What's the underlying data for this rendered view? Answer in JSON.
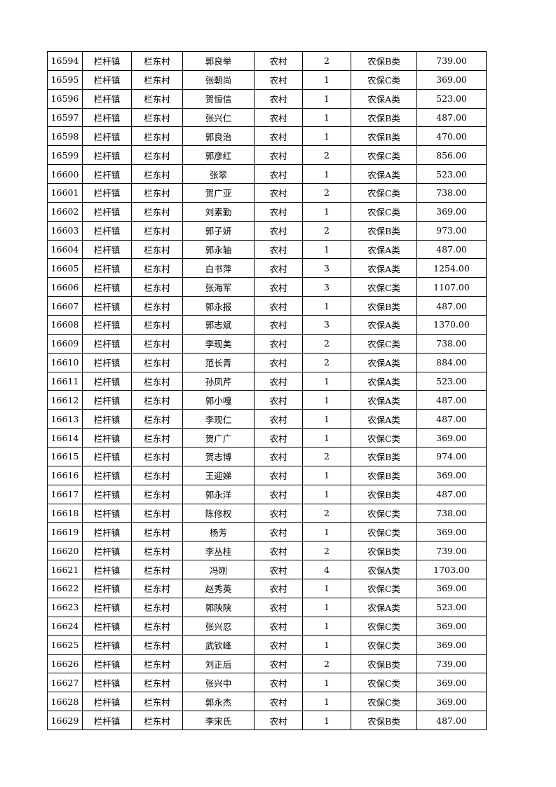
{
  "rows": [
    [
      "16594",
      "栏杆镇",
      "栏东村",
      "郭良举",
      "农村",
      "2",
      "农保B类",
      "739.00"
    ],
    [
      "16595",
      "栏杆镇",
      "栏东村",
      "张朝尚",
      "农村",
      "1",
      "农保C类",
      "369.00"
    ],
    [
      "16596",
      "栏杆镇",
      "栏东村",
      "贺恒信",
      "农村",
      "1",
      "农保A类",
      "523.00"
    ],
    [
      "16597",
      "栏杆镇",
      "栏东村",
      "张兴仁",
      "农村",
      "1",
      "农保B类",
      "487.00"
    ],
    [
      "16598",
      "栏杆镇",
      "栏东村",
      "郭良治",
      "农村",
      "1",
      "农保B类",
      "470.00"
    ],
    [
      "16599",
      "栏杆镇",
      "栏东村",
      "郭彦红",
      "农村",
      "2",
      "农保C类",
      "856.00"
    ],
    [
      "16600",
      "栏杆镇",
      "栏东村",
      "张翠",
      "农村",
      "1",
      "农保A类",
      "523.00"
    ],
    [
      "16601",
      "栏杆镇",
      "栏东村",
      "贺广亚",
      "农村",
      "2",
      "农保C类",
      "738.00"
    ],
    [
      "16602",
      "栏杆镇",
      "栏东村",
      "刘素勤",
      "农村",
      "1",
      "农保C类",
      "369.00"
    ],
    [
      "16603",
      "栏杆镇",
      "栏东村",
      "郭子妍",
      "农村",
      "2",
      "农保B类",
      "973.00"
    ],
    [
      "16604",
      "栏杆镇",
      "栏东村",
      "郭永轴",
      "农村",
      "1",
      "农保A类",
      "487.00"
    ],
    [
      "16605",
      "栏杆镇",
      "栏东村",
      "白书萍",
      "农村",
      "3",
      "农保A类",
      "1254.00"
    ],
    [
      "16606",
      "栏杆镇",
      "栏东村",
      "张海军",
      "农村",
      "3",
      "农保C类",
      "1107.00"
    ],
    [
      "16607",
      "栏杆镇",
      "栏东村",
      "郭永报",
      "农村",
      "1",
      "农保B类",
      "487.00"
    ],
    [
      "16608",
      "栏杆镇",
      "栏东村",
      "郭志斌",
      "农村",
      "3",
      "农保A类",
      "1370.00"
    ],
    [
      "16609",
      "栏杆镇",
      "栏东村",
      "李现美",
      "农村",
      "2",
      "农保C类",
      "738.00"
    ],
    [
      "16610",
      "栏杆镇",
      "栏东村",
      "范长青",
      "农村",
      "2",
      "农保A类",
      "884.00"
    ],
    [
      "16611",
      "栏杆镇",
      "栏东村",
      "孙凤芹",
      "农村",
      "1",
      "农保A类",
      "523.00"
    ],
    [
      "16612",
      "栏杆镇",
      "栏东村",
      "郭小嘎",
      "农村",
      "1",
      "农保A类",
      "487.00"
    ],
    [
      "16613",
      "栏杆镇",
      "栏东村",
      "李现仁",
      "农村",
      "1",
      "农保A类",
      "487.00"
    ],
    [
      "16614",
      "栏杆镇",
      "栏东村",
      "贺广广",
      "农村",
      "1",
      "农保C类",
      "369.00"
    ],
    [
      "16615",
      "栏杆镇",
      "栏东村",
      "贺志博",
      "农村",
      "2",
      "农保B类",
      "974.00"
    ],
    [
      "16616",
      "栏杆镇",
      "栏东村",
      "王迎娣",
      "农村",
      "1",
      "农保B类",
      "369.00"
    ],
    [
      "16617",
      "栏杆镇",
      "栏东村",
      "郭永洋",
      "农村",
      "1",
      "农保B类",
      "487.00"
    ],
    [
      "16618",
      "栏杆镇",
      "栏东村",
      "陈修权",
      "农村",
      "2",
      "农保C类",
      "738.00"
    ],
    [
      "16619",
      "栏杆镇",
      "栏东村",
      "杨芳",
      "农村",
      "1",
      "农保C类",
      "369.00"
    ],
    [
      "16620",
      "栏杆镇",
      "栏东村",
      "李丛桂",
      "农村",
      "2",
      "农保B类",
      "739.00"
    ],
    [
      "16621",
      "栏杆镇",
      "栏东村",
      "冯刚",
      "农村",
      "4",
      "农保A类",
      "1703.00"
    ],
    [
      "16622",
      "栏杆镇",
      "栏东村",
      "赵秀英",
      "农村",
      "1",
      "农保C类",
      "369.00"
    ],
    [
      "16623",
      "栏杆镇",
      "栏东村",
      "郭陕陕",
      "农村",
      "1",
      "农保A类",
      "523.00"
    ],
    [
      "16624",
      "栏杆镇",
      "栏东村",
      "张兴忍",
      "农村",
      "1",
      "农保C类",
      "369.00"
    ],
    [
      "16625",
      "栏杆镇",
      "栏东村",
      "武钦峰",
      "农村",
      "1",
      "农保C类",
      "369.00"
    ],
    [
      "16626",
      "栏杆镇",
      "栏东村",
      "刘正后",
      "农村",
      "2",
      "农保B类",
      "739.00"
    ],
    [
      "16627",
      "栏杆镇",
      "栏东村",
      "张兴中",
      "农村",
      "1",
      "农保C类",
      "369.00"
    ],
    [
      "16628",
      "栏杆镇",
      "栏东村",
      "郭永杰",
      "农村",
      "1",
      "农保C类",
      "369.00"
    ],
    [
      "16629",
      "栏杆镇",
      "栏东村",
      "李宋氏",
      "农村",
      "1",
      "农保B类",
      "487.00"
    ]
  ]
}
